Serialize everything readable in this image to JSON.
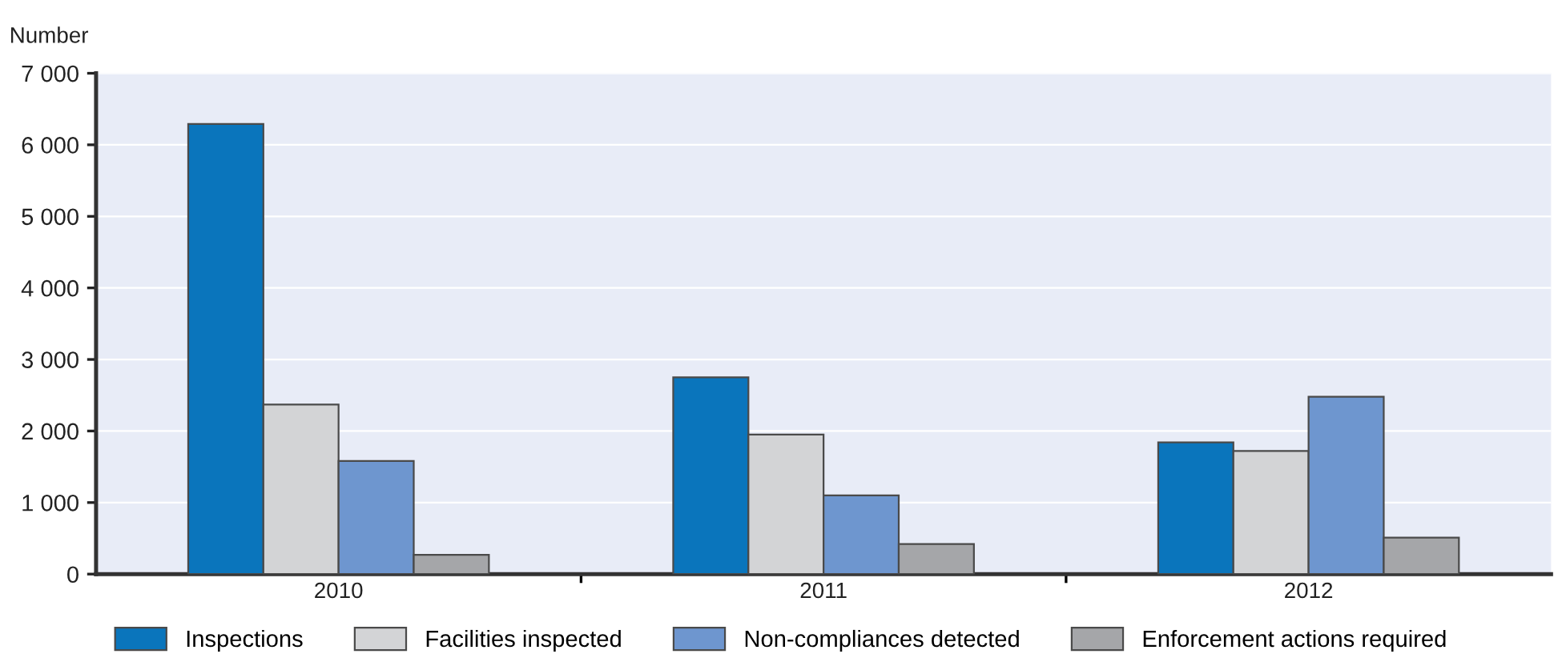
{
  "chart_data": {
    "type": "bar",
    "ylabel": "Number",
    "categories": [
      "2010",
      "2011",
      "2012"
    ],
    "series": [
      {
        "name": "Inspections",
        "color": "#0a75bc",
        "values": [
          6290,
          2750,
          1840
        ]
      },
      {
        "name": "Facilities inspected",
        "color": "#d3d4d6",
        "values": [
          2370,
          1950,
          1720
        ]
      },
      {
        "name": "Non-compliances detected",
        "color": "#6e96cf",
        "values": [
          1580,
          1100,
          2480
        ]
      },
      {
        "name": "Enforcement actions required",
        "color": "#a5a6a9",
        "values": [
          270,
          420,
          510
        ]
      }
    ],
    "ylim": [
      0,
      7000
    ],
    "yticks": [
      0,
      {
        "value": 1000,
        "label": "1 000"
      },
      {
        "value": 2000,
        "label": "2 000"
      },
      {
        "value": 3000,
        "label": "3 000"
      },
      {
        "value": 4000,
        "label": "4 000"
      },
      {
        "value": 5000,
        "label": "5 000"
      },
      {
        "value": 6000,
        "label": "6 000"
      },
      {
        "value": 7000,
        "label": "7 000"
      }
    ],
    "grid": "y",
    "legend": "bottom"
  }
}
